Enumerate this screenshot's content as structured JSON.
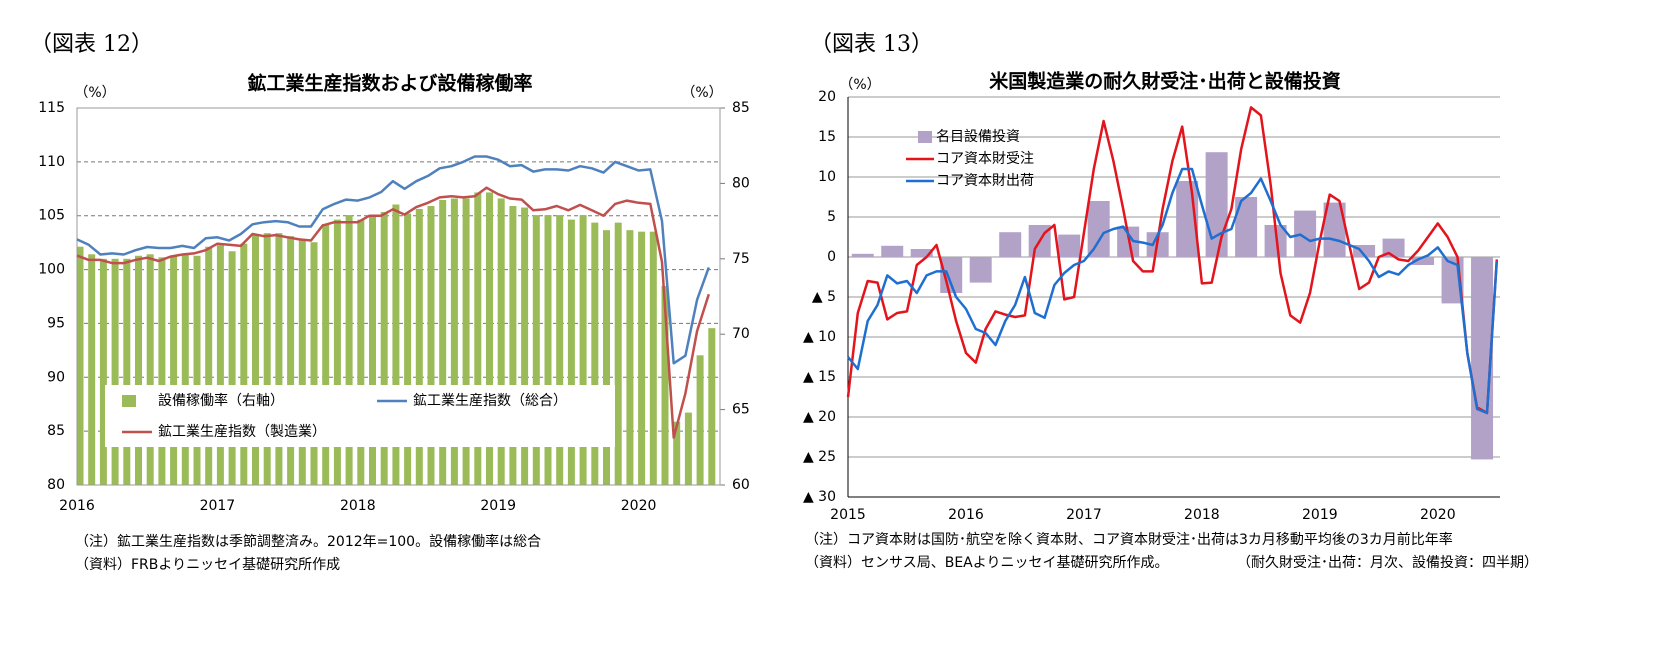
{
  "chart_data": [
    {
      "type": "combo",
      "figure_label": "（図表 12）",
      "title": "鉱工業生産指数および設備稼働率",
      "y_unit": "（%）",
      "y2_unit": "（%）",
      "notes": [
        "（注）鉱工業生産指数は季節調整済み。2012年=100。設備稼働率は総合",
        "（資料）FRBよりニッセイ基礎研究所作成"
      ],
      "categories": [
        "2016",
        null,
        null,
        null,
        null,
        null,
        null,
        null,
        null,
        null,
        null,
        null,
        "2017",
        null,
        null,
        null,
        null,
        null,
        null,
        null,
        null,
        null,
        null,
        null,
        "2018",
        null,
        null,
        null,
        null,
        null,
        null,
        null,
        null,
        null,
        null,
        null,
        "2019",
        null,
        null,
        null,
        null,
        null,
        null,
        null,
        null,
        null,
        null,
        null,
        "2020",
        null,
        null,
        null,
        null,
        null,
        null
      ],
      "ylim": [
        80,
        115
      ],
      "yticks": [
        80,
        85,
        90,
        95,
        100,
        105,
        110,
        115
      ],
      "y2lim": [
        60,
        85
      ],
      "y2ticks": [
        60,
        65,
        70,
        75,
        80,
        85
      ],
      "grid": true,
      "legend": "lower left",
      "series": [
        {
          "name": "設備稼働率（右軸）",
          "type": "bar",
          "axis": "y2",
          "color": "#9bbb59",
          "values": [
            75.8,
            75.3,
            75.0,
            75.0,
            75.0,
            75.2,
            75.3,
            75.1,
            75.2,
            75.3,
            75.2,
            75.8,
            75.9,
            75.5,
            76.0,
            76.6,
            76.7,
            76.7,
            76.5,
            76.3,
            76.1,
            77.3,
            77.6,
            77.9,
            77.6,
            77.8,
            78.1,
            78.6,
            78.0,
            78.3,
            78.5,
            78.9,
            79.0,
            79.0,
            79.4,
            79.4,
            79.0,
            78.5,
            78.4,
            77.9,
            77.9,
            77.9,
            77.6,
            77.9,
            77.4,
            76.9,
            77.4,
            76.9,
            76.8,
            76.8,
            73.2,
            64.2,
            64.8,
            68.6,
            70.4
          ]
        },
        {
          "name": "鉱工業生産指数（総合）",
          "type": "line",
          "color": "#4f81bd",
          "values": [
            102.8,
            102.3,
            101.4,
            101.5,
            101.4,
            101.8,
            102.1,
            102.0,
            102.0,
            102.2,
            102.0,
            102.9,
            103.0,
            102.7,
            103.3,
            104.2,
            104.4,
            104.5,
            104.4,
            104.0,
            104.0,
            105.6,
            106.1,
            106.5,
            106.4,
            106.7,
            107.2,
            108.2,
            107.5,
            108.2,
            108.7,
            109.4,
            109.6,
            110.0,
            110.5,
            110.5,
            110.2,
            109.6,
            109.7,
            109.1,
            109.3,
            109.3,
            109.2,
            109.6,
            109.4,
            109.0,
            110.0,
            109.6,
            109.2,
            109.3,
            104.5,
            91.3,
            92.0,
            97.2,
            100.2
          ]
        },
        {
          "name": "鉱工業生産指数（製造業）",
          "type": "line",
          "color": "#c0504d",
          "values": [
            101.3,
            100.9,
            100.9,
            100.6,
            100.6,
            100.9,
            101.1,
            100.8,
            101.2,
            101.4,
            101.5,
            101.8,
            102.4,
            102.3,
            102.2,
            103.3,
            103.1,
            103.2,
            103.0,
            102.8,
            102.7,
            104.1,
            104.4,
            104.4,
            104.4,
            105.0,
            105.0,
            105.6,
            105.1,
            105.8,
            106.2,
            106.7,
            106.8,
            106.7,
            106.8,
            107.6,
            107.0,
            106.6,
            106.5,
            105.5,
            105.6,
            105.9,
            105.5,
            106.0,
            105.5,
            105.0,
            106.1,
            106.4,
            106.2,
            106.1,
            100.7,
            84.4,
            88.5,
            94.3,
            97.7
          ]
        }
      ]
    },
    {
      "type": "combo",
      "figure_label": "（図表 13）",
      "title": "米国製造業の耐久財受注･出荷と設備投資",
      "y_unit": "（%）",
      "notes": [
        "（注）コア資本財は国防･航空を除く資本財、コア資本財受注･出荷は3カ月移動平均後の3カ月前比年率",
        "（資料）センサス局、BEAよりニッセイ基礎研究所作成。",
        "（耐久財受注･出荷：月次、設備投資：四半期）"
      ],
      "categories": [
        "2015",
        null,
        null,
        null,
        null,
        null,
        null,
        null,
        null,
        null,
        null,
        null,
        "2016",
        null,
        null,
        null,
        null,
        null,
        null,
        null,
        null,
        null,
        null,
        null,
        "2017",
        null,
        null,
        null,
        null,
        null,
        null,
        null,
        null,
        null,
        null,
        null,
        "2018",
        null,
        null,
        null,
        null,
        null,
        null,
        null,
        null,
        null,
        null,
        null,
        "2019",
        null,
        null,
        null,
        null,
        null,
        null,
        null,
        null,
        null,
        null,
        null,
        "2020",
        null,
        null,
        null,
        null,
        null,
        null
      ],
      "ylim": [
        -30,
        20
      ],
      "yticks": [
        {
          "value": -30,
          "label": "▲ 30"
        },
        {
          "value": -25,
          "label": "▲ 25"
        },
        {
          "value": -20,
          "label": "▲ 20"
        },
        {
          "value": -15,
          "label": "▲ 15"
        },
        {
          "value": -10,
          "label": "▲ 10"
        },
        {
          "value": -5,
          "label": "▲ 5"
        },
        0,
        5,
        10,
        15,
        20
      ],
      "grid": true,
      "legend": "upper left",
      "series": [
        {
          "name": "名目設備投資",
          "type": "bar",
          "color": "#b3a2c7",
          "values": [
            null,
            0.4,
            null,
            null,
            1.4,
            null,
            null,
            1.0,
            null,
            null,
            -4.5,
            null,
            null,
            -3.2,
            null,
            null,
            3.1,
            null,
            null,
            4.0,
            null,
            null,
            2.8,
            null,
            null,
            7.0,
            null,
            null,
            3.8,
            null,
            null,
            3.1,
            null,
            null,
            9.5,
            null,
            null,
            13.1,
            null,
            null,
            7.5,
            null,
            null,
            4.0,
            null,
            null,
            5.8,
            null,
            null,
            6.8,
            null,
            null,
            1.5,
            null,
            null,
            2.3,
            null,
            null,
            -1.0,
            null,
            null,
            -5.8,
            null,
            null,
            -25.3,
            null,
            null
          ]
        },
        {
          "name": "コア資本財受注",
          "type": "line",
          "color": "#e3141c",
          "values": [
            -17.5,
            -7,
            -3,
            -3.2,
            -7.8,
            -7,
            -6.8,
            -1,
            0,
            1.5,
            -3,
            -8,
            -12,
            -13.2,
            -9,
            -6.8,
            -7.2,
            -7.5,
            -7.3,
            1,
            3,
            4,
            -5.3,
            -5,
            3,
            11,
            17,
            12,
            6,
            -0.5,
            -1.8,
            -1.8,
            6,
            12,
            16.3,
            8,
            -3.3,
            -3.2,
            2.5,
            6,
            13.5,
            18.7,
            17.7,
            9,
            -2,
            -7.3,
            -8.2,
            -4.5,
            2,
            7.8,
            7,
            1.5,
            -4,
            -3.2,
            0,
            0.5,
            -0.3,
            -0.5,
            0.8,
            2.5,
            4.2,
            2.5,
            0,
            -12,
            -18.8,
            -19.5,
            -0.3
          ]
        },
        {
          "name": "コア資本財出荷",
          "type": "line",
          "color": "#1f6fd0",
          "values": [
            -12.5,
            -14,
            -8,
            -6,
            -2.3,
            -3.3,
            -3,
            -4.5,
            -2.3,
            -1.8,
            -1.8,
            -5,
            -6.5,
            -9,
            -9.5,
            -11,
            -8,
            -6,
            -2.5,
            -7,
            -7.6,
            -3.5,
            -2,
            -1,
            -0.5,
            1,
            3,
            3.5,
            3.8,
            2,
            1.8,
            1.5,
            4,
            8,
            11,
            11,
            6.5,
            2.3,
            3,
            3.5,
            7,
            8,
            9.8,
            7,
            4,
            2.5,
            2.8,
            2,
            2.3,
            2.3,
            2,
            1.5,
            1,
            -0.5,
            -2.5,
            -1.8,
            -2.2,
            -1,
            -0.3,
            0.2,
            1.2,
            -0.5,
            -1,
            -12,
            -19,
            -19.5,
            -0.5
          ]
        }
      ]
    }
  ]
}
